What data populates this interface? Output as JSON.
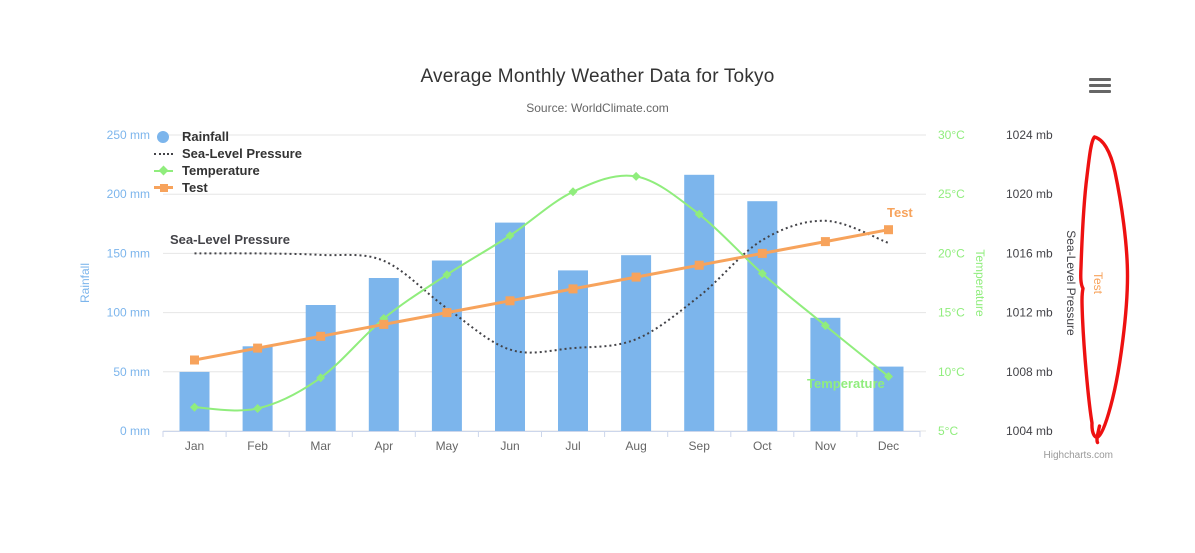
{
  "title": "Average Monthly Weather Data for Tokyo",
  "subtitle": "Source: WorldClimate.com",
  "credits": "Highcharts.com",
  "context_menu": {
    "icon": "hamburger-icon"
  },
  "colors": {
    "rainfall": "#7cb5ec",
    "pressure": "#434348",
    "temperature": "#90ed7d",
    "test": "#f7a35c",
    "grid": "#e6e6e6",
    "axis_line": "#ccd6eb",
    "tick_label": "#666666",
    "title_text": "#333333",
    "subtitle_text": "#666666",
    "credits_text": "#999999",
    "annotation": "#ee1111"
  },
  "legend": {
    "items": [
      {
        "label": "Rainfall",
        "marker": "circle",
        "color_key": "rainfall"
      },
      {
        "label": "Sea-Level Pressure",
        "marker": "dotted-line",
        "color_key": "pressure"
      },
      {
        "label": "Temperature",
        "marker": "line-diamond",
        "color_key": "temperature"
      },
      {
        "label": "Test",
        "marker": "line-square",
        "color_key": "test"
      }
    ]
  },
  "series_labels": {
    "pressure": "Sea-Level Pressure",
    "temperature": "Temperature",
    "test": "Test"
  },
  "axes": {
    "x": {
      "labels": [
        "Jan",
        "Feb",
        "Mar",
        "Apr",
        "May",
        "Jun",
        "Jul",
        "Aug",
        "Sep",
        "Oct",
        "Nov",
        "Dec"
      ]
    },
    "rainfall": {
      "title": "Rainfall",
      "min": 0,
      "max": 250,
      "tick_values": [
        0,
        50,
        100,
        150,
        200,
        250
      ],
      "tick_labels": [
        "0 mm",
        "50 mm",
        "100 mm",
        "150 mm",
        "200 mm",
        "250 mm"
      ]
    },
    "temperature": {
      "title": "Temperature",
      "min": 5,
      "max": 30,
      "tick_values": [
        5,
        10,
        15,
        20,
        25,
        30
      ],
      "tick_labels": [
        "5°C",
        "10°C",
        "15°C",
        "20°C",
        "25°C",
        "30°C"
      ]
    },
    "pressure": {
      "title": "Sea-Level Pressure",
      "min": 1004,
      "max": 1024,
      "tick_values": [
        1004,
        1008,
        1012,
        1016,
        1020,
        1024
      ],
      "tick_labels": [
        "1004 mb",
        "1008 mb",
        "1012 mb",
        "1016 mb",
        "1020 mb",
        "1024 mb"
      ]
    },
    "test": {
      "title": "Test"
    }
  },
  "annotation": {
    "type": "hand-drawn-red-circle",
    "around": "Test axis title"
  },
  "chart_data": {
    "type": "combo",
    "categories": [
      "Jan",
      "Feb",
      "Mar",
      "Apr",
      "May",
      "Jun",
      "Jul",
      "Aug",
      "Sep",
      "Oct",
      "Nov",
      "Dec"
    ],
    "grid": "horizontal",
    "legend_position": "top-left-vertical",
    "series": [
      {
        "name": "Rainfall",
        "type": "column",
        "axis": "rainfall",
        "unit": "mm",
        "color_key": "rainfall",
        "values": [
          49.9,
          71.5,
          106.4,
          129.2,
          144.0,
          176.0,
          135.6,
          148.5,
          216.4,
          194.1,
          95.6,
          54.4
        ]
      },
      {
        "name": "Sea-Level Pressure",
        "type": "spline-dotted",
        "axis": "pressure",
        "unit": "mb",
        "color_key": "pressure",
        "values": [
          1016,
          1016,
          1015.9,
          1015.5,
          1012.3,
          1009.5,
          1009.6,
          1010.2,
          1013.1,
          1016.9,
          1018.2,
          1016.7
        ]
      },
      {
        "name": "Temperature",
        "type": "spline-diamond",
        "axis": "temperature",
        "unit": "°C",
        "color_key": "temperature",
        "values": [
          7.0,
          6.9,
          9.5,
          14.5,
          18.2,
          21.5,
          25.2,
          26.5,
          23.3,
          18.3,
          13.9,
          9.6
        ]
      },
      {
        "name": "Test",
        "type": "line-square",
        "axis": "rainfall",
        "unit": "",
        "color_key": "test",
        "values": [
          60,
          70,
          80,
          90,
          100,
          110,
          120,
          130,
          140,
          150,
          160,
          170
        ]
      }
    ]
  }
}
